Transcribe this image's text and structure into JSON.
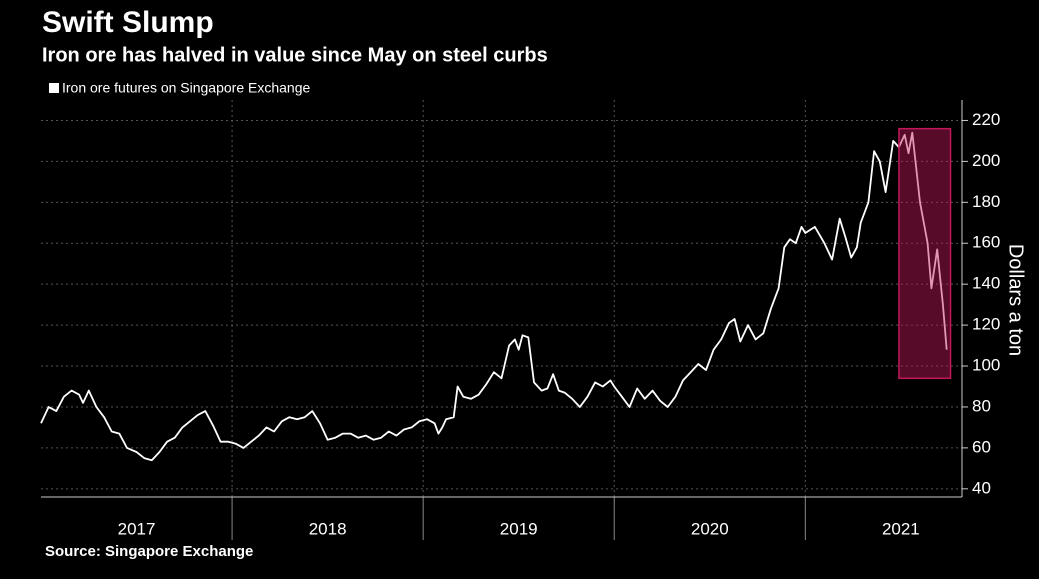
{
  "chart_data": {
    "type": "line",
    "title": "Swift Slump",
    "subtitle": "Iron ore has halved in value since May on steel curbs",
    "source": "Source: Singapore Exchange",
    "y_label": "Dollars a ton",
    "x": [
      2017.0,
      2017.04,
      2017.08,
      2017.12,
      2017.16,
      2017.2,
      2017.22,
      2017.25,
      2017.29,
      2017.33,
      2017.37,
      2017.41,
      2017.45,
      2017.5,
      2017.54,
      2017.58,
      2017.62,
      2017.66,
      2017.7,
      2017.74,
      2017.78,
      2017.82,
      2017.86,
      2017.9,
      2017.94,
      2017.98,
      2018.02,
      2018.06,
      2018.1,
      2018.14,
      2018.18,
      2018.22,
      2018.26,
      2018.3,
      2018.34,
      2018.38,
      2018.42,
      2018.46,
      2018.5,
      2018.54,
      2018.58,
      2018.62,
      2018.66,
      2018.7,
      2018.74,
      2018.78,
      2018.82,
      2018.86,
      2018.9,
      2018.94,
      2018.98,
      2019.02,
      2019.06,
      2019.08,
      2019.1,
      2019.12,
      2019.16,
      2019.18,
      2019.21,
      2019.25,
      2019.29,
      2019.33,
      2019.37,
      2019.41,
      2019.45,
      2019.48,
      2019.5,
      2019.52,
      2019.55,
      2019.58,
      2019.62,
      2019.65,
      2019.68,
      2019.71,
      2019.74,
      2019.78,
      2019.82,
      2019.86,
      2019.9,
      2019.94,
      2019.98,
      2020.0,
      2020.04,
      2020.08,
      2020.12,
      2020.16,
      2020.2,
      2020.24,
      2020.28,
      2020.32,
      2020.36,
      2020.4,
      2020.44,
      2020.48,
      2020.52,
      2020.56,
      2020.6,
      2020.63,
      2020.66,
      2020.7,
      2020.74,
      2020.78,
      2020.82,
      2020.86,
      2020.89,
      2020.92,
      2020.95,
      2020.98,
      2021.0,
      2021.05,
      2021.1,
      2021.14,
      2021.18,
      2021.21,
      2021.24,
      2021.27,
      2021.29,
      2021.33,
      2021.36,
      2021.39,
      2021.42,
      2021.46,
      2021.49,
      2021.52,
      2021.54,
      2021.56,
      2021.6,
      2021.64,
      2021.66,
      2021.69,
      2021.72,
      2021.74
    ],
    "series": [
      {
        "name": "Iron ore futures on Singapore Exchange",
        "color": "#ffffff",
        "values": [
          72,
          80,
          78,
          85,
          88,
          86,
          82,
          88,
          80,
          75,
          68,
          67,
          60,
          58,
          55,
          54,
          58,
          63,
          65,
          70,
          73,
          76,
          78,
          71,
          63,
          63,
          62,
          60,
          63,
          66,
          70,
          68,
          73,
          75,
          74,
          75,
          78,
          72,
          64,
          65,
          67,
          67,
          65,
          66,
          64,
          65,
          68,
          66,
          69,
          70,
          73,
          74,
          72,
          67,
          70,
          74,
          75,
          90,
          85,
          84,
          86,
          91,
          97,
          94,
          110,
          113,
          108,
          115,
          114,
          92,
          88,
          89,
          96,
          88,
          87,
          84,
          80,
          85,
          92,
          90,
          93,
          90,
          85,
          80,
          89,
          84,
          88,
          83,
          80,
          85,
          93,
          97,
          101,
          98,
          108,
          113,
          121,
          123,
          112,
          120,
          113,
          116,
          128,
          138,
          158,
          162,
          160,
          168,
          165,
          168,
          160,
          152,
          172,
          163,
          153,
          158,
          170,
          180,
          205,
          200,
          185,
          210,
          207,
          213,
          204,
          214,
          180,
          160,
          138,
          157,
          130,
          108
        ]
      }
    ],
    "xlim": [
      2017,
      2021.82
    ],
    "xticks": [
      {
        "value": 2017.5,
        "label": "2017"
      },
      {
        "value": 2018.5,
        "label": "2018"
      },
      {
        "value": 2019.5,
        "label": "2019"
      },
      {
        "value": 2020.5,
        "label": "2020"
      },
      {
        "value": 2021.5,
        "label": "2021"
      }
    ],
    "ylim": [
      36,
      230
    ],
    "yticks": [
      40,
      60,
      80,
      100,
      120,
      140,
      160,
      180,
      200,
      220
    ],
    "grid": true,
    "highlight": {
      "xlim": [
        2021.49,
        2021.76
      ],
      "ylim": [
        94,
        216
      ],
      "color": "#c2185b"
    }
  }
}
